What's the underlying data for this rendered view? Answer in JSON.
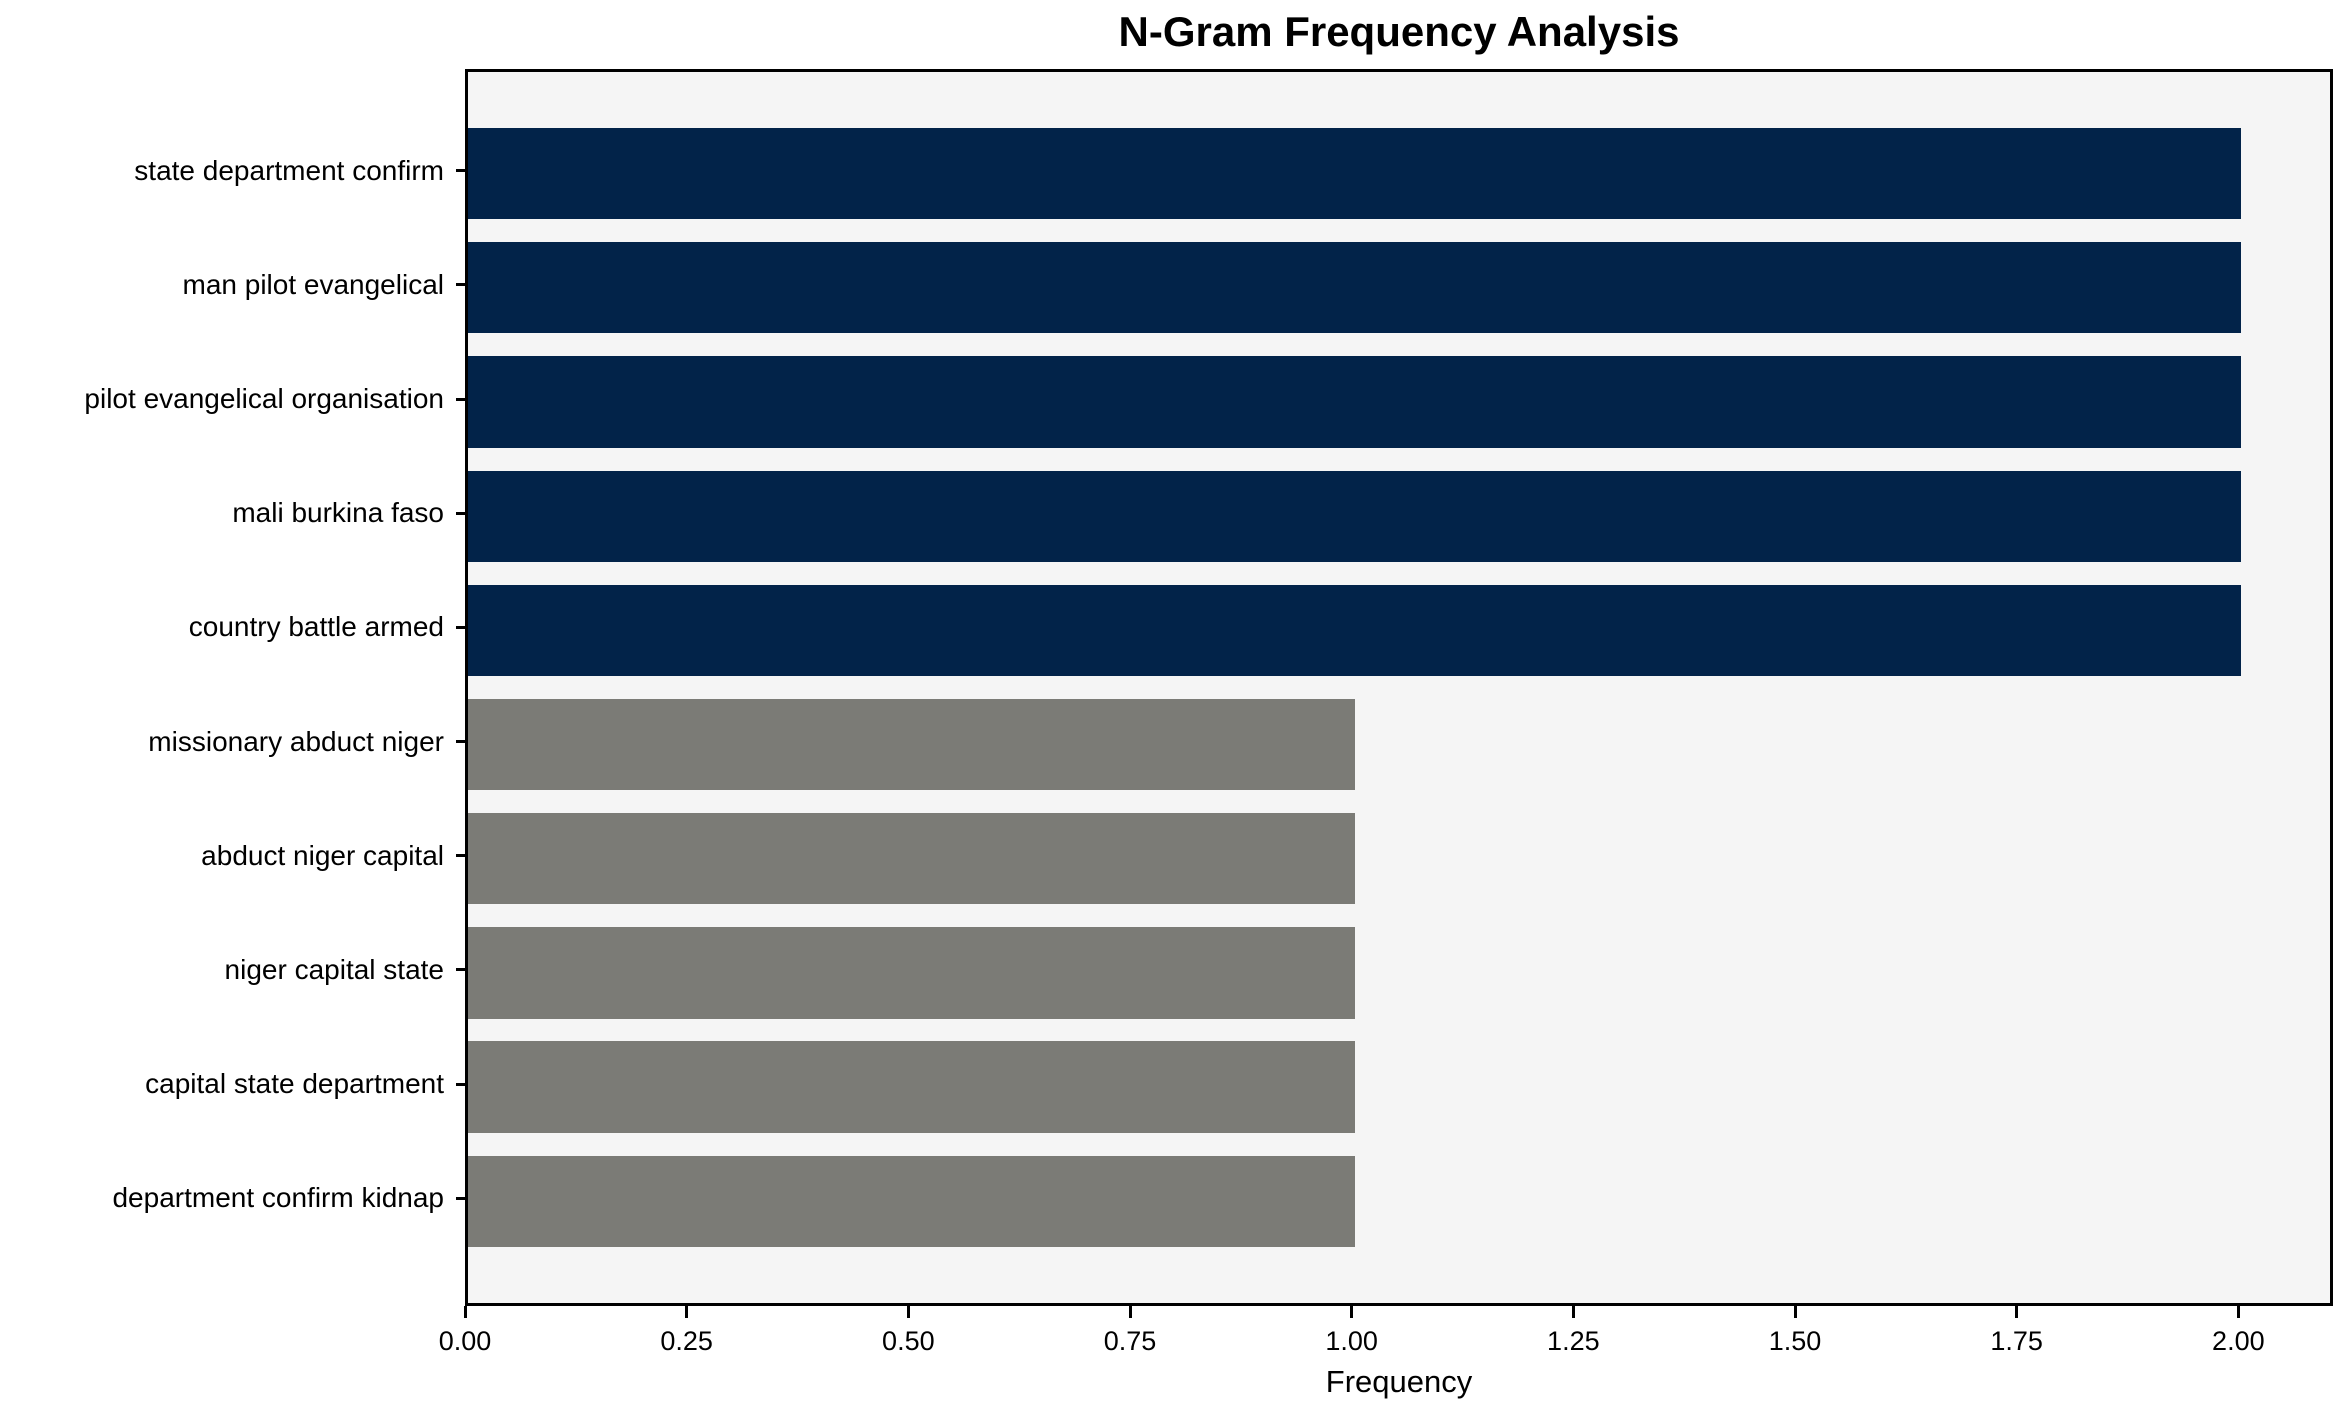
{
  "title": "N-Gram Frequency Analysis",
  "chart_data": {
    "type": "bar",
    "orientation": "horizontal",
    "title": "N-Gram Frequency Analysis",
    "xlabel": "Frequency",
    "ylabel": "",
    "categories": [
      "state department confirm",
      "man pilot evangelical",
      "pilot evangelical organisation",
      "mali burkina faso",
      "country battle armed",
      "missionary abduct niger",
      "abduct niger capital",
      "niger capital state",
      "capital state department",
      "department confirm kidnap"
    ],
    "values": [
      2,
      2,
      2,
      2,
      2,
      1,
      1,
      1,
      1,
      1
    ],
    "bar_colors": [
      "#022349",
      "#022349",
      "#022349",
      "#022349",
      "#022349",
      "#7b7b76",
      "#7b7b76",
      "#7b7b76",
      "#7b7b76",
      "#7b7b76"
    ],
    "xlim": [
      0,
      2.1
    ],
    "xtick_values": [
      0,
      0.25,
      0.5,
      0.75,
      1.0,
      1.25,
      1.5,
      1.75,
      2.0
    ],
    "xtick_labels": [
      "0.00",
      "0.25",
      "0.50",
      "0.75",
      "1.00",
      "1.25",
      "1.50",
      "1.75",
      "2.00"
    ],
    "grid": false,
    "legend_position": "none",
    "colors": {
      "bar_high_freq": "#022349",
      "bar_low_freq": "#7b7b76",
      "plot_background": "#f5f5f5",
      "figure_background": "#ffffff",
      "text": "#000000",
      "spine": "#000000"
    }
  }
}
